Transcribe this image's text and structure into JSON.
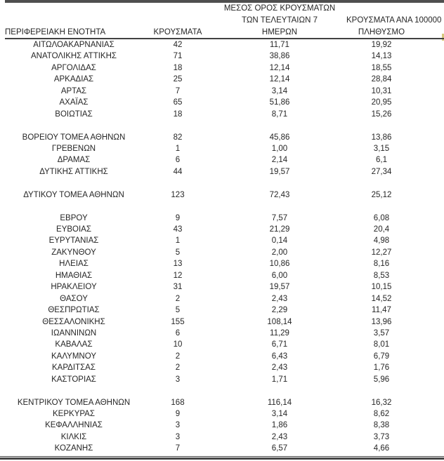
{
  "table": {
    "headers": {
      "region": "ΠΕΡΙΦΕΡΕΙΑΚΗ ΕΝΟΤΗΤΑ",
      "cases": "ΚΡΟΥΣΜΑΤΑ",
      "avg7_lines": [
        "ΜΕΣΟΣ ΟΡΟΣ ΚΡΟΥΣΜΑΤΩΝ",
        "ΤΩΝ ΤΕΛΕΥΤΑΙΩΝ 7",
        "ΗΜΕΡΩΝ"
      ],
      "per100k_lines": [
        "ΚΡΟΥΣΜΑΤΑ ΑΝΑ 100000",
        "ΠΛΗΘΥΣΜΟ"
      ]
    },
    "rows": [
      {
        "region": "ΑΙΤΩΛΟΑΚΑΡΝΑΝΙΑΣ",
        "cases": "42",
        "avg7": "11,71",
        "per100k": "19,92"
      },
      {
        "region": "ΑΝΑΤΟΛΙΚΗΣ ΑΤΤΙΚΗΣ",
        "cases": "71",
        "avg7": "38,86",
        "per100k": "14,13"
      },
      {
        "region": "ΑΡΓΟΛΙΔΑΣ",
        "cases": "18",
        "avg7": "12,14",
        "per100k": "18,55"
      },
      {
        "region": "ΑΡΚΑΔΙΑΣ",
        "cases": "25",
        "avg7": "12,14",
        "per100k": "28,84"
      },
      {
        "region": "ΑΡΤΑΣ",
        "cases": "7",
        "avg7": "3,14",
        "per100k": "10,31"
      },
      {
        "region": "ΑΧΑΪΑΣ",
        "cases": "65",
        "avg7": "51,86",
        "per100k": "20,95"
      },
      {
        "region": "ΒΟΙΩΤΙΑΣ",
        "cases": "18",
        "avg7": "8,71",
        "per100k": "15,26"
      },
      null,
      {
        "region": "ΒΟΡΕΙΟΥ ΤΟΜΕΑ ΑΘΗΝΩΝ",
        "cases": "82",
        "avg7": "45,86",
        "per100k": "13,86"
      },
      {
        "region": "ΓΡΕΒΕΝΩΝ",
        "cases": "1",
        "avg7": "1,00",
        "per100k": "3,15"
      },
      {
        "region": "ΔΡΑΜΑΣ",
        "cases": "6",
        "avg7": "2,14",
        "per100k": "6,1"
      },
      {
        "region": "ΔΥΤΙΚΗΣ ΑΤΤΙΚΗΣ",
        "cases": "44",
        "avg7": "19,57",
        "per100k": "27,34"
      },
      null,
      {
        "region": "ΔΥΤΙΚΟΥ ΤΟΜΕΑ ΑΘΗΝΩΝ",
        "cases": "123",
        "avg7": "72,43",
        "per100k": "25,12"
      },
      null,
      {
        "region": "ΕΒΡΟΥ",
        "cases": "9",
        "avg7": "7,57",
        "per100k": "6,08"
      },
      {
        "region": "ΕΥΒΟΙΑΣ",
        "cases": "43",
        "avg7": "21,29",
        "per100k": "20,4"
      },
      {
        "region": "ΕΥΡΥΤΑΝΙΑΣ",
        "cases": "1",
        "avg7": "0,14",
        "per100k": "4,98"
      },
      {
        "region": "ΖΑΚΥΝΘΟΥ",
        "cases": "5",
        "avg7": "2,00",
        "per100k": "12,27"
      },
      {
        "region": "ΗΛΕΙΑΣ",
        "cases": "13",
        "avg7": "10,86",
        "per100k": "8,16"
      },
      {
        "region": "ΗΜΑΘΙΑΣ",
        "cases": "12",
        "avg7": "6,00",
        "per100k": "8,53"
      },
      {
        "region": "ΗΡΑΚΛΕΙΟΥ",
        "cases": "31",
        "avg7": "19,57",
        "per100k": "10,15"
      },
      {
        "region": "ΘΑΣΟΥ",
        "cases": "2",
        "avg7": "2,43",
        "per100k": "14,52"
      },
      {
        "region": "ΘΕΣΠΡΩΤΙΑΣ",
        "cases": "5",
        "avg7": "2,29",
        "per100k": "11,47"
      },
      {
        "region": "ΘΕΣΣΑΛΟΝΙΚΗΣ",
        "cases": "155",
        "avg7": "108,14",
        "per100k": "13,96"
      },
      {
        "region": "ΙΩΑΝΝΙΝΩΝ",
        "cases": "6",
        "avg7": "11,29",
        "per100k": "3,57"
      },
      {
        "region": "ΚΑΒΑΛΑΣ",
        "cases": "10",
        "avg7": "6,71",
        "per100k": "8,01"
      },
      {
        "region": "ΚΑΛΥΜΝΟΥ",
        "cases": "2",
        "avg7": "6,43",
        "per100k": "6,79"
      },
      {
        "region": "ΚΑΡΔΙΤΣΑΣ",
        "cases": "2",
        "avg7": "2,43",
        "per100k": "1,76"
      },
      {
        "region": "ΚΑΣΤΟΡΙΑΣ",
        "cases": "3",
        "avg7": "1,71",
        "per100k": "5,96"
      },
      null,
      {
        "region": "ΚΕΝΤΡΙΚΟΥ ΤΟΜΕΑ ΑΘΗΝΩΝ",
        "cases": "168",
        "avg7": "116,14",
        "per100k": "16,32"
      },
      {
        "region": "ΚΕΡΚΥΡΑΣ",
        "cases": "9",
        "avg7": "3,14",
        "per100k": "8,62"
      },
      {
        "region": "ΚΕΦΑΛΛΗΝΙΑΣ",
        "cases": "3",
        "avg7": "1,86",
        "per100k": "8,38"
      },
      {
        "region": "ΚΙΛΚΙΣ",
        "cases": "3",
        "avg7": "2,43",
        "per100k": "3,73"
      },
      {
        "region": "ΚΟΖΑΝΗΣ",
        "cases": "7",
        "avg7": "6,57",
        "per100k": "4,66"
      }
    ]
  },
  "colors": {
    "rule": "#4a4a4a",
    "top_bar": "#4f4f4f",
    "text": "#262626",
    "edge_marker": "#d6c87c"
  }
}
